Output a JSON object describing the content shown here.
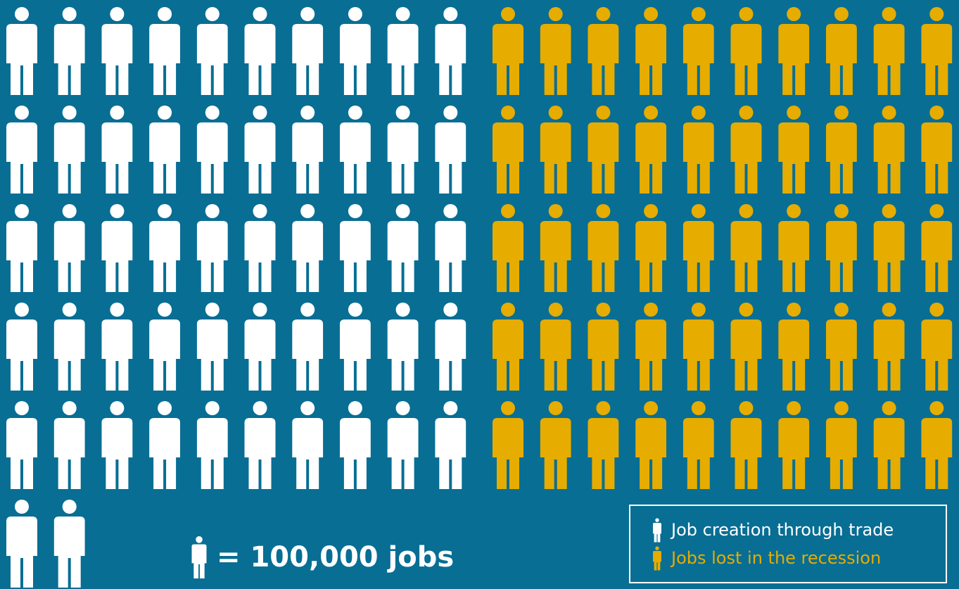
{
  "chart_data": {
    "type": "pictogram",
    "unit_label": "= 100,000 jobs",
    "unit_value": 100000,
    "series": [
      {
        "name": "Job creation through trade",
        "icon_count": 52,
        "color": "#ffffff"
      },
      {
        "name": "Jobs lost in the recession",
        "icon_count": 50,
        "color": "#e6ac00"
      }
    ]
  },
  "legend": {
    "items": [
      {
        "label": "Job creation through trade",
        "color": "#ffffff"
      },
      {
        "label": "Jobs lost in the recession",
        "color": "#e6ac00"
      }
    ]
  },
  "icons": {
    "person": "person-icon"
  }
}
